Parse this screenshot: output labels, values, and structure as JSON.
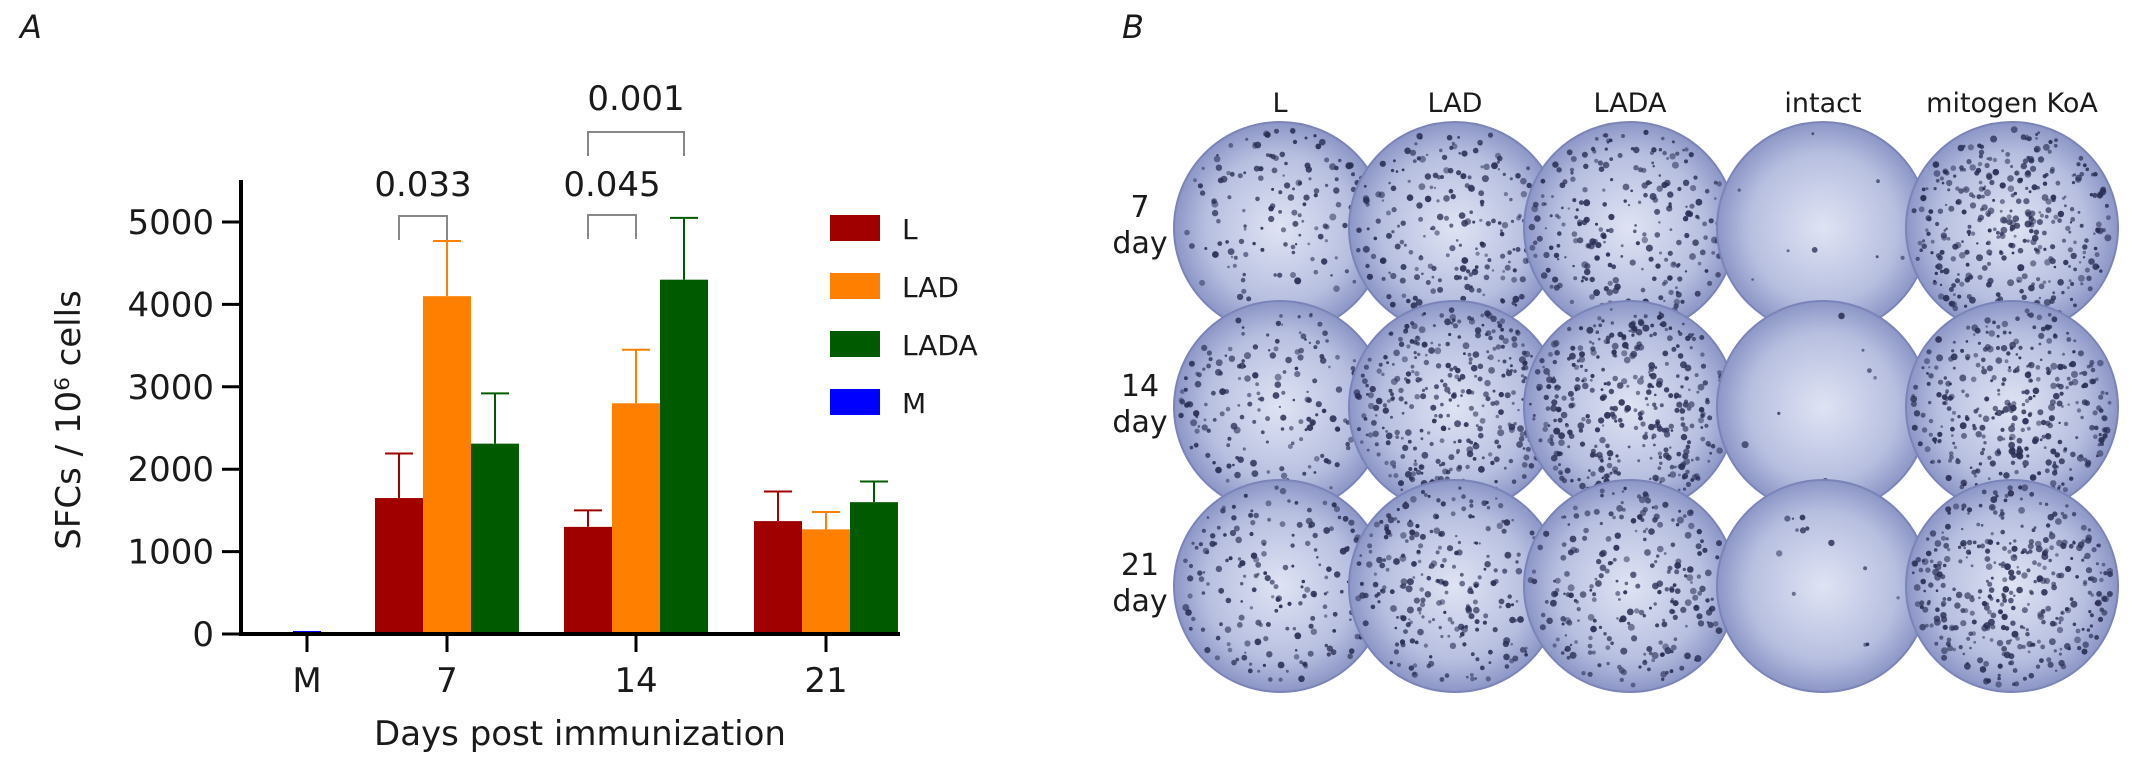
{
  "panels": {
    "a_label": "A",
    "b_label": "B"
  },
  "chart_data": {
    "type": "bar",
    "title": "",
    "xlabel": "Days post immunization",
    "ylabel": "SFCs / 10⁶ cells",
    "ylim": [
      0,
      5000
    ],
    "yticks": [
      0,
      1000,
      2000,
      3000,
      4000,
      5000
    ],
    "categories": [
      "M",
      "7",
      "14",
      "21"
    ],
    "legend_position": "top-right",
    "series": [
      {
        "name": "L",
        "color": "#a00000",
        "values": [
          null,
          1650,
          1300,
          1370
        ],
        "errors": [
          null,
          540,
          200,
          360
        ]
      },
      {
        "name": "LAD",
        "color": "#ff8000",
        "values": [
          null,
          4100,
          2800,
          1270
        ],
        "errors": [
          null,
          670,
          650,
          210
        ]
      },
      {
        "name": "LADA",
        "color": "#005a00",
        "values": [
          null,
          2310,
          4300,
          1600
        ],
        "errors": [
          null,
          610,
          750,
          250
        ]
      },
      {
        "name": "M",
        "color": "#0000ff",
        "values": [
          10,
          null,
          null,
          null
        ],
        "errors": [
          null,
          null,
          null,
          null
        ]
      }
    ],
    "annotations": [
      {
        "text": "0.033",
        "group": "7",
        "from": "L",
        "to": "LAD"
      },
      {
        "text": "0.045",
        "group": "14",
        "from": "L",
        "to": "LAD"
      },
      {
        "text": "0.001",
        "group": "14",
        "from": "L",
        "to": "LADA"
      }
    ]
  },
  "elispot": {
    "columns": [
      "L",
      "LAD",
      "LADA",
      "intact",
      "mitogen KoA"
    ],
    "rows": [
      {
        "day": "7",
        "unit": "day"
      },
      {
        "day": "14",
        "unit": "day"
      },
      {
        "day": "21",
        "unit": "day"
      }
    ],
    "spot_density": [
      [
        0.35,
        0.55,
        0.6,
        0.02,
        0.9
      ],
      [
        0.45,
        0.85,
        0.95,
        0.02,
        0.9
      ],
      [
        0.45,
        0.6,
        0.6,
        0.03,
        0.9
      ]
    ],
    "well_color": "#aab4dc",
    "spot_color": "#2a2f55"
  }
}
